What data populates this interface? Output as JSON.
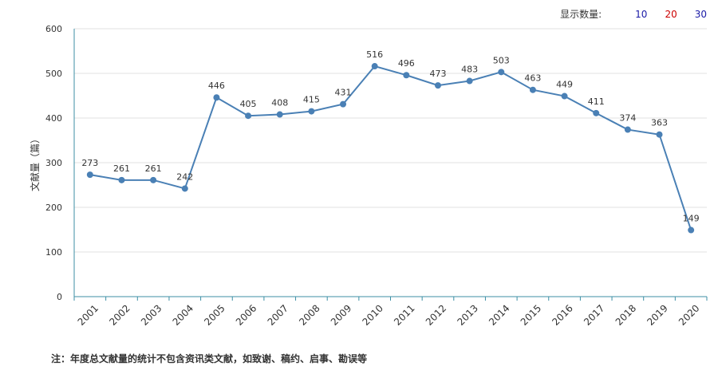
{
  "display_count": {
    "label": "显示数量:",
    "options": [
      {
        "text": "10",
        "color": "#1a1aa6"
      },
      {
        "text": "20",
        "color": "#cc0000"
      },
      {
        "text": "30",
        "color": "#1a1aa6"
      }
    ]
  },
  "footnote": "注：年度总文献量的统计不包含资讯类文献，如致谢、稿约、启事、勘误等",
  "chart_data": {
    "type": "line",
    "ylabel": "文献量（篇）",
    "xlabel": "",
    "title": "",
    "ylim": [
      0,
      600
    ],
    "yticks": [
      0,
      100,
      200,
      300,
      400,
      500,
      600
    ],
    "grid": true,
    "line_color": "#4a80b5",
    "categories": [
      "2001",
      "2002",
      "2003",
      "2004",
      "2005",
      "2006",
      "2007",
      "2008",
      "2009",
      "2010",
      "2011",
      "2012",
      "2013",
      "2014",
      "2015",
      "2016",
      "2017",
      "2018",
      "2019",
      "2020"
    ],
    "values": [
      273,
      261,
      261,
      242,
      446,
      405,
      408,
      415,
      431,
      516,
      496,
      473,
      483,
      503,
      463,
      449,
      411,
      374,
      363,
      149
    ]
  }
}
